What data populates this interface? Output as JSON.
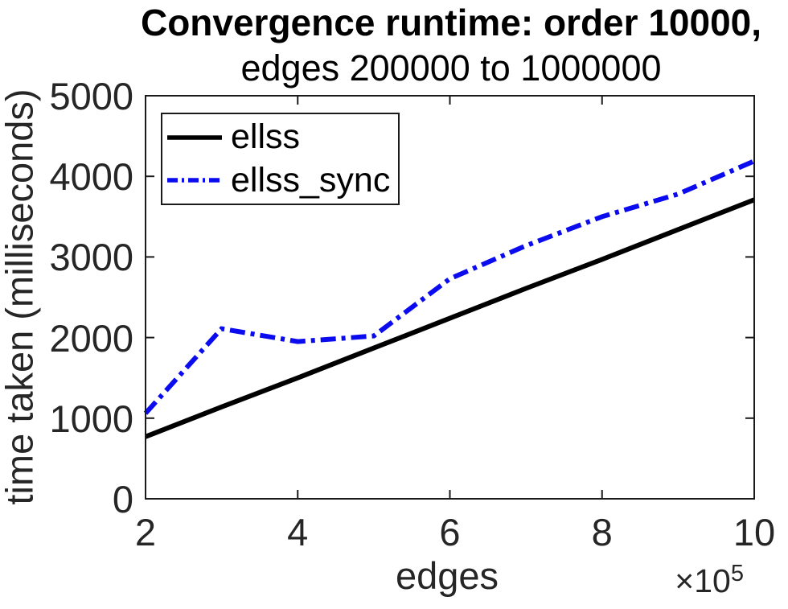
{
  "figure": {
    "title_line1": "Convergence runtime: order 10000,",
    "title_line2": "edges 200000 to 1000000"
  },
  "chart_data": {
    "type": "line",
    "title": "Convergence runtime: order 10000, edges 200000 to 1000000",
    "xlabel": "edges",
    "ylabel": "time taken (milliseconds)",
    "x_multiplier_base": "×10",
    "x_multiplier_exponent": "5",
    "xlim": [
      200000,
      1000000
    ],
    "ylim": [
      0,
      5000
    ],
    "grid": false,
    "legend_position": "top-left",
    "x_ticks": {
      "values": [
        200000,
        400000,
        600000,
        800000,
        1000000
      ],
      "labels": [
        "2",
        "4",
        "6",
        "8",
        "10"
      ]
    },
    "y_ticks": {
      "values": [
        0,
        1000,
        2000,
        3000,
        4000,
        5000
      ],
      "labels": [
        "0",
        "1000",
        "2000",
        "3000",
        "4000",
        "5000"
      ]
    },
    "x": [
      200000,
      300000,
      400000,
      500000,
      600000,
      700000,
      800000,
      900000,
      1000000
    ],
    "series": [
      {
        "name": "ellss",
        "color": "#000000",
        "style": "solid",
        "values": [
          770,
          1140,
          1500,
          1870,
          2240,
          2610,
          2970,
          3340,
          3710
        ]
      },
      {
        "name": "ellss_sync",
        "color": "#0b0bef",
        "style": "dash-dot",
        "values": [
          1060,
          2110,
          1950,
          2020,
          2730,
          3140,
          3500,
          3780,
          4190
        ]
      }
    ]
  },
  "colors": {
    "axis_frame": "#1a1a1a",
    "tick_text": "#262626",
    "title_text": "#000000",
    "series_black": "#000000",
    "series_blue": "#0b0bef",
    "background": "#ffffff"
  }
}
